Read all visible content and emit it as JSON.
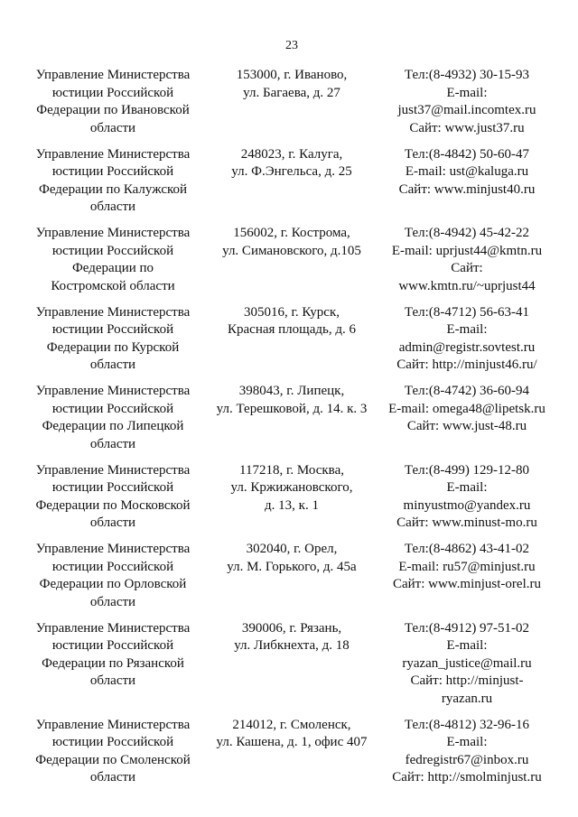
{
  "page_number": "23",
  "entries": [
    {
      "name": [
        "Управление Министерства",
        "юстиции Российской",
        "Федерации по Ивановской",
        "области"
      ],
      "address": [
        "153000, г. Иваново,",
        "ул. Багаева, д. 27"
      ],
      "contacts": [
        "Тел:(8-4932) 30-15-93",
        "E-mail:",
        "just37@mail.incomtex.ru",
        "Сайт: www.just37.ru"
      ]
    },
    {
      "name": [
        "Управление Министерства",
        "юстиции Российской",
        "Федерации по Калужской",
        "области"
      ],
      "address": [
        "248023, г. Калуга,",
        "ул. Ф.Энгельса, д. 25"
      ],
      "contacts": [
        "Тел:(8-4842) 50-60-47",
        "E-mail: ust@kaluga.ru",
        "Сайт: www.minjust40.ru"
      ]
    },
    {
      "name": [
        "Управление Министерства",
        "юстиции Российской",
        "Федерации по",
        "Костромской области"
      ],
      "address": [
        "156002, г. Кострома,",
        "ул. Симановского, д.105"
      ],
      "contacts": [
        "Тел:(8-4942) 45-42-22",
        "E-mail: uprjust44@kmtn.ru",
        "Сайт:",
        "www.kmtn.ru/~uprjust44"
      ]
    },
    {
      "name": [
        "Управление Министерства",
        "юстиции Российской",
        "Федерации по Курской",
        "области"
      ],
      "address": [
        "305016, г. Курск,",
        "Красная площадь, д. 6"
      ],
      "contacts": [
        "Тел:(8-4712) 56-63-41",
        "E-mail:",
        "admin@registr.sovtest.ru",
        "Сайт: http://minjust46.ru/"
      ]
    },
    {
      "name": [
        "Управление Министерства",
        "юстиции Российской",
        "Федерации по Липецкой",
        "области"
      ],
      "address": [
        "398043, г. Липецк,",
        "ул. Терешковой, д. 14. к. 3"
      ],
      "contacts": [
        "Тел:(8-4742) 36-60-94",
        "E-mail: omega48@lipetsk.ru",
        "Сайт: www.just-48.ru"
      ]
    },
    {
      "name": [
        "Управление Министерства",
        "юстиции Российской",
        "Федерации по Московской",
        "области"
      ],
      "address": [
        "117218, г. Москва,",
        "ул. Кржижановского,",
        "д. 13, к. 1"
      ],
      "contacts": [
        "Тел:(8-499) 129-12-80",
        "E-mail:",
        "minyustmo@yandex.ru",
        "Сайт: www.minust-mo.ru"
      ]
    },
    {
      "name": [
        "Управление Министерства",
        "юстиции Российской",
        "Федерации по Орловской",
        "области"
      ],
      "address": [
        "302040, г. Орел,",
        "ул. М. Горького, д. 45а"
      ],
      "contacts": [
        "Тел:(8-4862) 43-41-02",
        "E-mail: ru57@minjust.ru",
        "Сайт: www.minjust-orel.ru"
      ]
    },
    {
      "name": [
        "Управление Министерства",
        "юстиции Российской",
        "Федерации по Рязанской",
        "области"
      ],
      "address": [
        "390006, г. Рязань,",
        "ул. Либкнехта, д. 18"
      ],
      "contacts": [
        "Тел:(8-4912) 97-51-02",
        "E-mail:",
        "ryazan_justice@mail.ru",
        "Сайт: http://minjust-",
        "ryazan.ru"
      ]
    },
    {
      "name": [
        "Управление Министерства",
        "юстиции Российской",
        "Федерации по Смоленской",
        "области"
      ],
      "address": [
        "214012, г. Смоленск,",
        "ул. Кашена, д. 1, офис 407"
      ],
      "contacts": [
        "Тел:(8-4812) 32-96-16",
        "E-mail:",
        "fedregistr67@inbox.ru",
        "Сайт: http://smolminjust.ru"
      ]
    }
  ]
}
